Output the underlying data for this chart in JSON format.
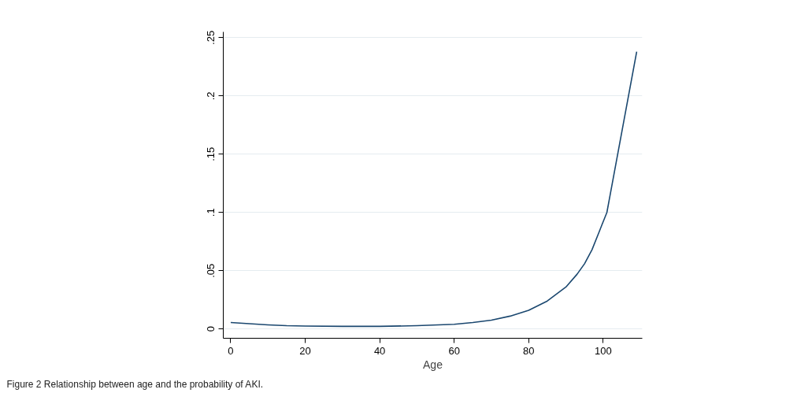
{
  "chart_data": {
    "type": "line",
    "xlabel": "Age",
    "x": [
      0,
      5,
      10,
      15,
      20,
      30,
      40,
      50,
      60,
      65,
      70,
      75,
      80,
      85,
      90,
      93,
      95,
      97,
      99,
      101,
      109
    ],
    "series": [
      {
        "color": "#1a476f",
        "values": [
          0.0055,
          0.0045,
          0.0035,
          0.0028,
          0.0025,
          0.0022,
          0.0022,
          0.0028,
          0.004,
          0.0055,
          0.0075,
          0.011,
          0.016,
          0.024,
          0.036,
          0.047,
          0.056,
          0.068,
          0.084,
          0.1,
          0.238
        ]
      }
    ],
    "xlim": [
      -2,
      110.5
    ],
    "ylim": [
      -0.008,
      0.255
    ],
    "xticks": [
      0,
      20,
      40,
      60,
      80,
      100
    ],
    "yticks": [
      {
        "value": 0,
        "label": "0"
      },
      {
        "value": 0.05,
        "label": ".05"
      },
      {
        "value": 0.1,
        "label": ".1"
      },
      {
        "value": 0.15,
        "label": ".15"
      },
      {
        "value": 0.2,
        "label": ".2"
      },
      {
        "value": 0.25,
        "label": ".25"
      }
    ],
    "grid": "y",
    "marker": "none",
    "line_style": "solid",
    "annotations": [
      "Figure 2 Relationship between age and the probability of AKI."
    ]
  }
}
